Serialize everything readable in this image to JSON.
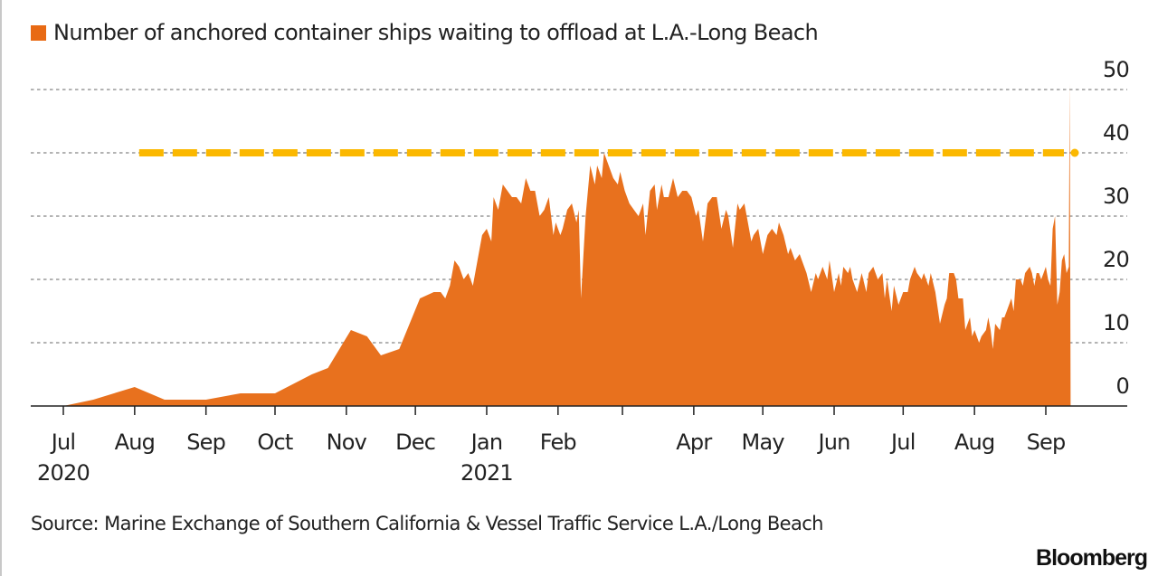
{
  "chart_data": {
    "type": "area",
    "title": "Number of anchored container ships waiting to offload at L.A.-Long Beach",
    "legend": [
      {
        "name": "Number of anchored container ships waiting to offload at L.A.-Long Beach",
        "color": "#e8711e"
      }
    ],
    "legend_placement": "top-left",
    "xlabel": "",
    "ylabel": "",
    "x_start_date": "2020-07-01",
    "x_unit": "days since 2020-07-01",
    "xlim": [
      -15,
      460
    ],
    "ylim": [
      -2,
      52
    ],
    "yticks": [
      0,
      10,
      20,
      30,
      40,
      50
    ],
    "grid": "horizontal dotted",
    "xticks": [
      {
        "day": 0,
        "label": "Jul",
        "sub": "2020"
      },
      {
        "day": 31,
        "label": "Aug",
        "sub": ""
      },
      {
        "day": 62,
        "label": "Sep",
        "sub": ""
      },
      {
        "day": 92,
        "label": "Oct",
        "sub": ""
      },
      {
        "day": 123,
        "label": "Nov",
        "sub": ""
      },
      {
        "day": 153,
        "label": "Dec",
        "sub": ""
      },
      {
        "day": 184,
        "label": "Jan",
        "sub": "2021"
      },
      {
        "day": 215,
        "label": "Feb",
        "sub": ""
      },
      {
        "day": 243,
        "label": "",
        "sub": ""
      },
      {
        "day": 274,
        "label": "Apr",
        "sub": ""
      },
      {
        "day": 304,
        "label": "May",
        "sub": ""
      },
      {
        "day": 335,
        "label": "Jun",
        "sub": ""
      },
      {
        "day": 365,
        "label": "Jul",
        "sub": ""
      },
      {
        "day": 396,
        "label": "Aug",
        "sub": ""
      },
      {
        "day": 427,
        "label": "Sep",
        "sub": ""
      }
    ],
    "reference_line": {
      "value": 40,
      "from_day": 31,
      "to_day": 438,
      "color": "#fbb800",
      "style": "dashed"
    },
    "series": [
      {
        "name": "Anchored container ships",
        "color": "#e8711e",
        "points": [
          [
            0,
            0
          ],
          [
            13,
            1
          ],
          [
            31,
            3
          ],
          [
            44,
            1
          ],
          [
            62,
            1
          ],
          [
            77,
            2
          ],
          [
            92,
            2
          ],
          [
            108,
            5
          ],
          [
            115,
            6
          ],
          [
            125,
            12
          ],
          [
            132,
            11
          ],
          [
            138,
            8
          ],
          [
            146,
            9
          ],
          [
            155,
            17
          ],
          [
            161,
            18
          ],
          [
            164,
            18
          ],
          [
            166,
            17
          ],
          [
            168,
            19
          ],
          [
            170,
            23
          ],
          [
            172,
            22
          ],
          [
            174,
            20
          ],
          [
            176,
            21
          ],
          [
            178,
            19
          ],
          [
            180,
            23
          ],
          [
            182,
            27
          ],
          [
            184,
            28
          ],
          [
            186,
            26
          ],
          [
            187,
            33
          ],
          [
            189,
            31
          ],
          [
            191,
            35
          ],
          [
            193,
            34
          ],
          [
            195,
            33
          ],
          [
            197,
            33
          ],
          [
            199,
            32
          ],
          [
            201,
            36
          ],
          [
            203,
            34
          ],
          [
            205,
            34
          ],
          [
            207,
            30
          ],
          [
            209,
            31
          ],
          [
            211,
            33
          ],
          [
            213,
            27
          ],
          [
            214,
            29
          ],
          [
            215,
            28
          ],
          [
            216,
            27
          ],
          [
            217,
            28
          ],
          [
            219,
            31
          ],
          [
            221,
            32
          ],
          [
            223,
            29
          ],
          [
            224,
            31
          ],
          [
            225,
            17
          ],
          [
            227,
            30
          ],
          [
            229,
            38
          ],
          [
            231,
            35
          ],
          [
            232,
            38
          ],
          [
            234,
            36
          ],
          [
            235,
            40
          ],
          [
            237,
            38
          ],
          [
            239,
            36
          ],
          [
            241,
            35
          ],
          [
            242,
            37
          ],
          [
            244,
            34
          ],
          [
            246,
            32
          ],
          [
            248,
            31
          ],
          [
            250,
            30
          ],
          [
            252,
            32
          ],
          [
            253,
            27
          ],
          [
            255,
            34
          ],
          [
            257,
            35
          ],
          [
            258,
            31
          ],
          [
            260,
            35
          ],
          [
            261,
            33
          ],
          [
            263,
            33
          ],
          [
            265,
            36
          ],
          [
            267,
            33
          ],
          [
            269,
            34
          ],
          [
            271,
            34
          ],
          [
            273,
            33
          ],
          [
            275,
            30
          ],
          [
            276,
            31
          ],
          [
            278,
            26
          ],
          [
            280,
            32
          ],
          [
            282,
            33
          ],
          [
            284,
            33
          ],
          [
            286,
            28
          ],
          [
            288,
            31
          ],
          [
            289,
            30
          ],
          [
            291,
            25
          ],
          [
            293,
            32
          ],
          [
            294,
            31
          ],
          [
            296,
            32
          ],
          [
            297,
            30
          ],
          [
            299,
            26
          ],
          [
            300,
            27
          ],
          [
            302,
            28
          ],
          [
            304,
            24
          ],
          [
            306,
            27
          ],
          [
            308,
            28
          ],
          [
            310,
            27
          ],
          [
            311,
            29
          ],
          [
            313,
            27
          ],
          [
            315,
            24
          ],
          [
            316,
            25
          ],
          [
            318,
            23
          ],
          [
            320,
            24
          ],
          [
            321,
            23
          ],
          [
            323,
            21
          ],
          [
            325,
            18
          ],
          [
            327,
            21
          ],
          [
            328,
            20
          ],
          [
            330,
            22
          ],
          [
            332,
            20
          ],
          [
            333,
            23
          ],
          [
            335,
            18
          ],
          [
            337,
            21
          ],
          [
            338,
            19
          ],
          [
            339,
            22
          ],
          [
            341,
            21
          ],
          [
            342,
            22
          ],
          [
            343,
            20
          ],
          [
            345,
            18
          ],
          [
            347,
            21
          ],
          [
            349,
            18
          ],
          [
            350,
            21
          ],
          [
            352,
            22
          ],
          [
            354,
            20
          ],
          [
            356,
            21
          ],
          [
            357,
            17
          ],
          [
            358,
            20
          ],
          [
            360,
            15
          ],
          [
            361,
            19
          ],
          [
            363,
            16
          ],
          [
            365,
            18
          ],
          [
            367,
            18
          ],
          [
            368,
            20
          ],
          [
            370,
            22
          ],
          [
            371,
            21
          ],
          [
            373,
            20
          ],
          [
            374,
            21
          ],
          [
            376,
            19
          ],
          [
            377,
            21
          ],
          [
            379,
            18
          ],
          [
            381,
            13
          ],
          [
            383,
            16
          ],
          [
            384,
            17
          ],
          [
            385,
            21
          ],
          [
            387,
            21
          ],
          [
            388,
            20
          ],
          [
            389,
            17
          ],
          [
            391,
            17
          ],
          [
            392,
            12
          ],
          [
            394,
            14
          ],
          [
            395,
            11
          ],
          [
            396,
            12
          ],
          [
            398,
            10
          ],
          [
            399,
            11
          ],
          [
            401,
            12
          ],
          [
            402,
            14
          ],
          [
            403,
            12
          ],
          [
            404,
            9
          ],
          [
            405,
            13
          ],
          [
            407,
            12
          ],
          [
            408,
            14
          ],
          [
            409,
            14
          ],
          [
            410,
            15
          ],
          [
            412,
            17
          ],
          [
            413,
            15
          ],
          [
            414,
            20
          ],
          [
            415,
            20
          ],
          [
            416,
            20
          ],
          [
            417,
            19
          ],
          [
            418,
            21
          ],
          [
            420,
            22
          ],
          [
            421,
            21
          ],
          [
            422,
            19
          ],
          [
            423,
            21
          ],
          [
            424,
            21
          ],
          [
            425,
            20
          ],
          [
            426,
            21
          ],
          [
            427,
            22
          ],
          [
            428,
            20
          ],
          [
            429,
            19
          ],
          [
            430,
            28
          ],
          [
            431,
            30
          ],
          [
            432,
            16
          ],
          [
            433,
            18
          ],
          [
            434,
            23
          ],
          [
            435,
            24
          ],
          [
            436,
            21
          ],
          [
            437,
            22
          ]
        ]
      }
    ]
  },
  "legend_label": "Number of anchored container ships waiting to offload at L.A.-Long Beach",
  "source": "Source: Marine Exchange of Southern California & Vessel Traffic Service L.A./Long Beach",
  "brand": "Bloomberg"
}
